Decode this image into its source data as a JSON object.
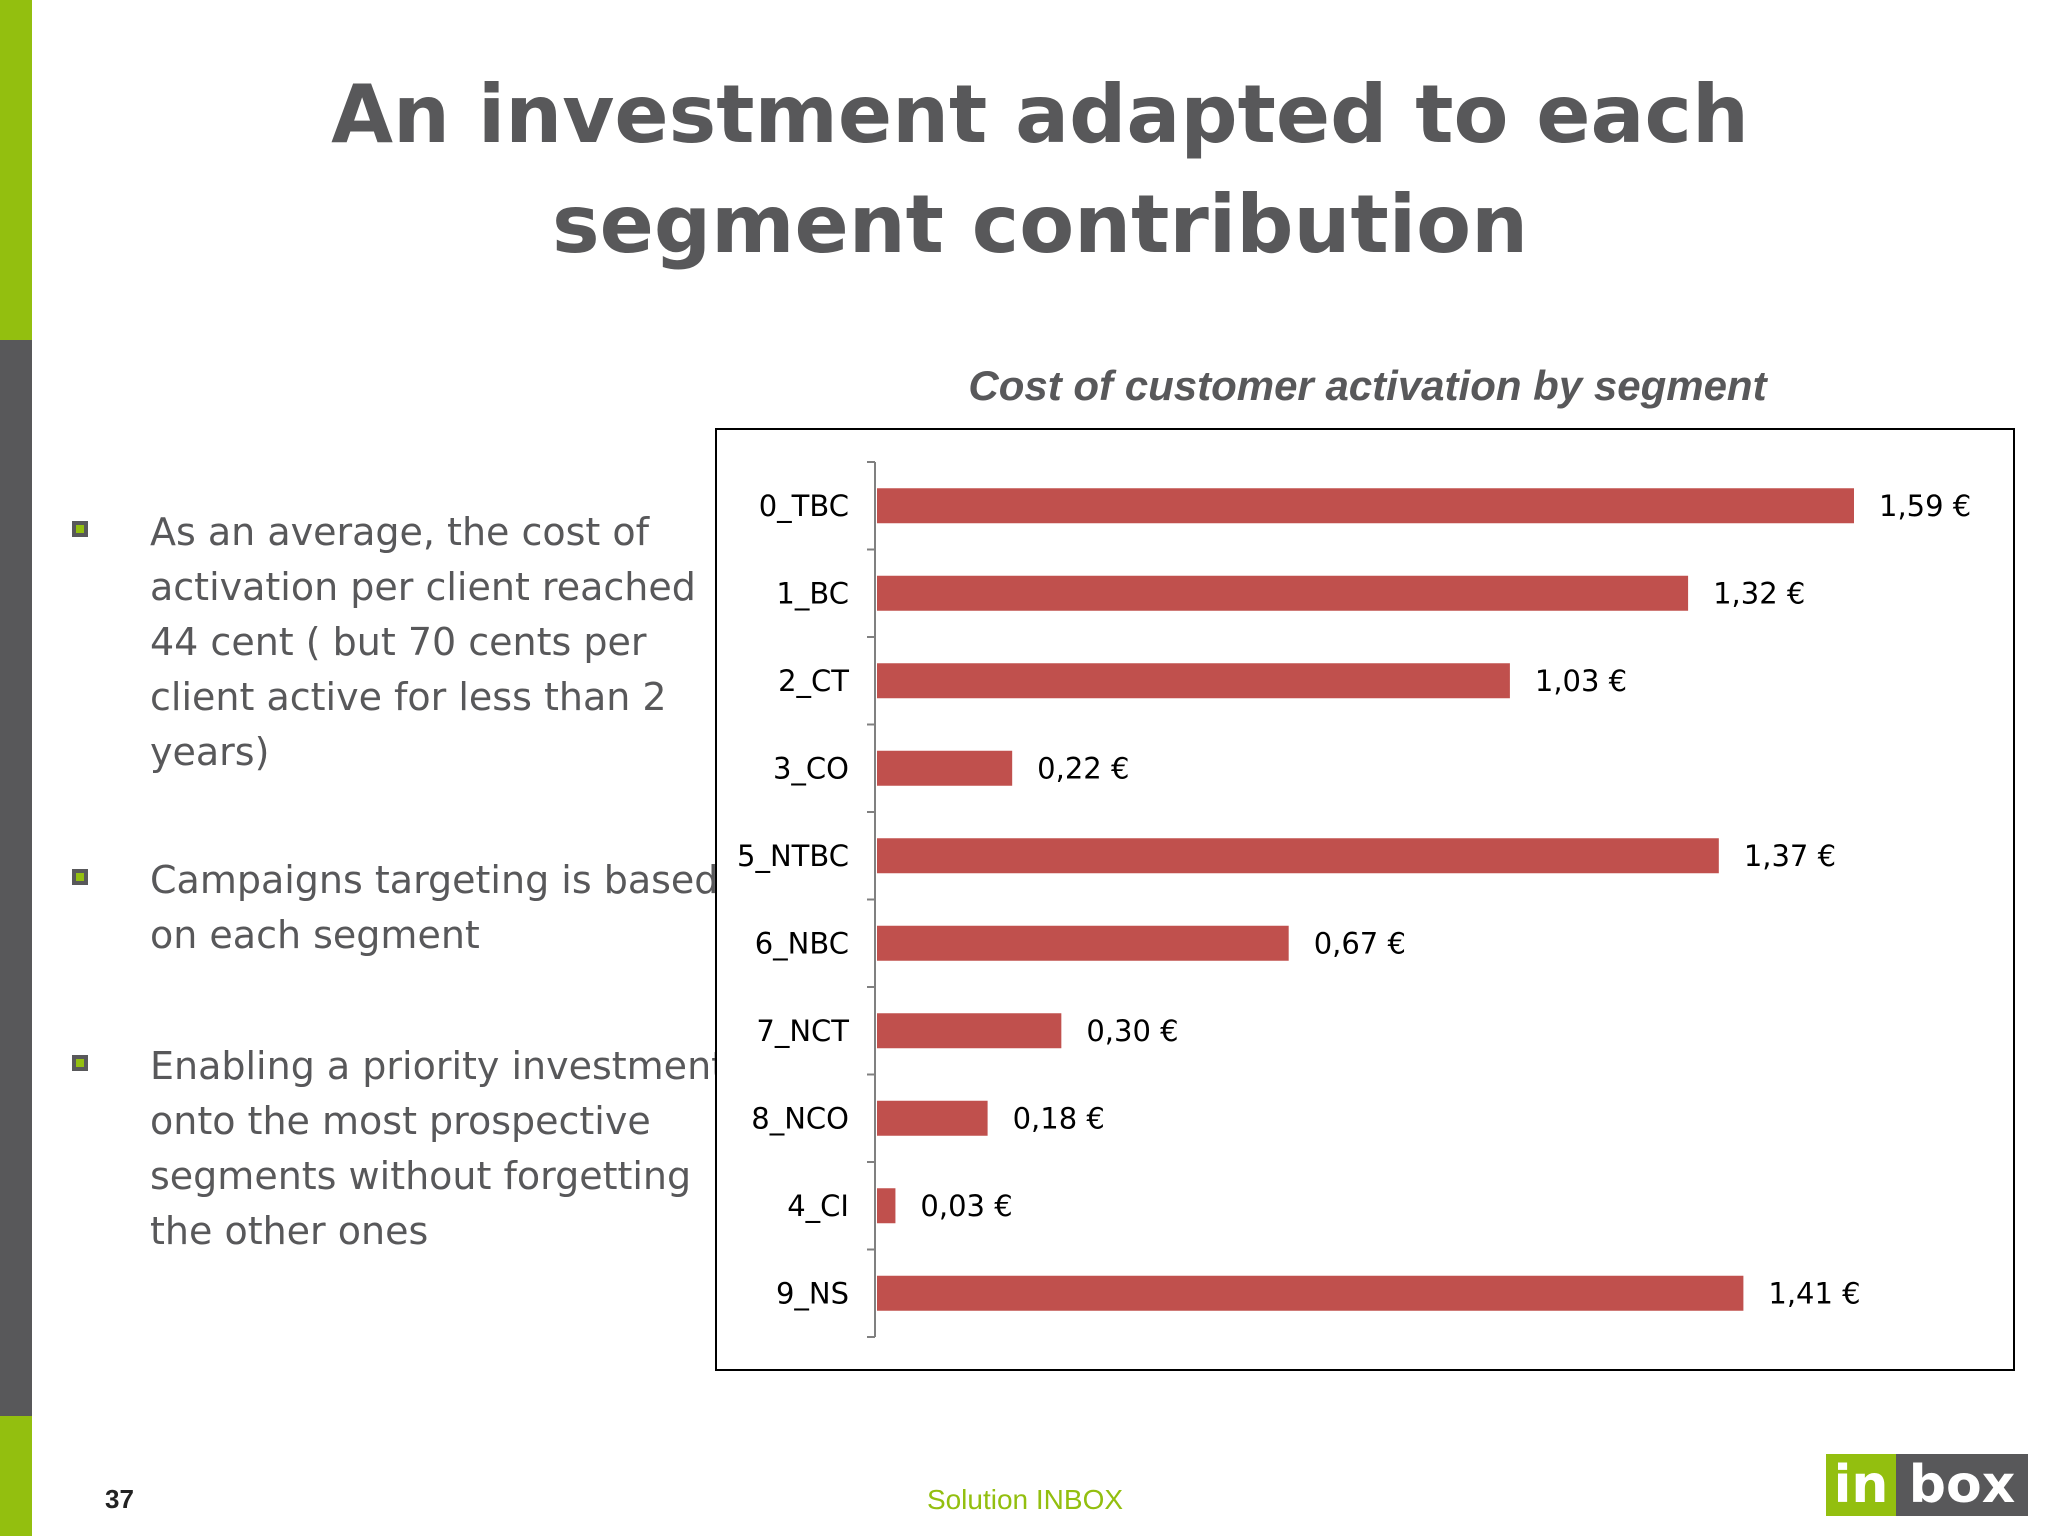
{
  "slide": {
    "title": "An investment adapted to each segment contribution",
    "page_number": "37",
    "footer": "Solution INBOX",
    "logo": {
      "part1": "in",
      "part2": "box",
      "colors": {
        "green": "#93bf0f",
        "gray": "#58585a"
      }
    }
  },
  "bullets": [
    "As an average, the cost of activation per client reached 44 cent ( but 70 cents per client active for less than 2 years)",
    "Campaigns targeting is based on each segment",
    "Enabling a priority investment onto the most prospective segments without forgetting the other ones"
  ],
  "chart_data": {
    "type": "bar",
    "orientation": "horizontal",
    "title": "Cost of customer activation by segment",
    "categories": [
      "0_TBC",
      "1_BC",
      "2_CT",
      "3_CO",
      "5_NTBC",
      "6_NBC",
      "7_NCT",
      "8_NCO",
      "4_CI",
      "9_NS"
    ],
    "values": [
      1.59,
      1.32,
      1.03,
      0.22,
      1.37,
      0.67,
      0.3,
      0.18,
      0.03,
      1.41
    ],
    "labels": [
      "1,59 €",
      "1,32 €",
      "1,03 €",
      "0,22 €",
      "1,37 €",
      "0,67 €",
      "0,30 €",
      "0,18 €",
      "0,03 €",
      "1,41 €"
    ],
    "xlim": [
      0,
      1.59
    ],
    "bar_color": "#c0504d",
    "grid": false,
    "legend": "none"
  }
}
